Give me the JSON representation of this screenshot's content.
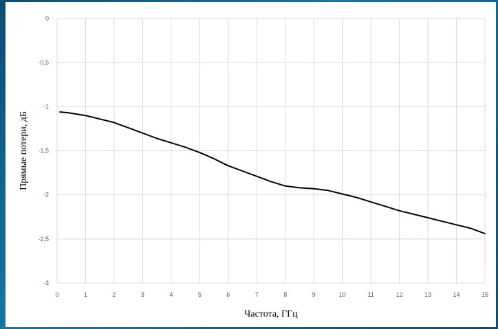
{
  "chart_data": {
    "type": "line",
    "title": "",
    "xlabel": "Частота, ГГц",
    "ylabel": "Прямые потери, дБ",
    "xlim": [
      0,
      15
    ],
    "ylim": [
      -3,
      0
    ],
    "grid": true,
    "legend": "none",
    "x_ticks": [
      "0",
      "1",
      "2",
      "3",
      "4",
      "5",
      "6",
      "7",
      "8",
      "9",
      "10",
      "11",
      "12",
      "13",
      "14",
      "15"
    ],
    "y_ticks": [
      "0",
      "-0,5",
      "-1",
      "-1,5",
      "-2",
      "-2,5",
      "-3"
    ],
    "colors": {
      "line": "#000000",
      "grid": "#d9d9d9"
    },
    "series": [
      {
        "x": [
          0.1,
          0.4,
          1.0,
          1.5,
          2.0,
          2.5,
          3.0,
          3.5,
          4.0,
          4.5,
          5.0,
          5.5,
          6.0,
          6.5,
          7.0,
          7.5,
          8.0,
          8.5,
          9.0,
          9.5,
          10.0,
          10.5,
          11.0,
          11.5,
          12.0,
          12.5,
          13.0,
          13.5,
          14.0,
          14.5,
          15.0
        ],
        "y": [
          -1.06,
          -1.07,
          -1.1,
          -1.14,
          -1.18,
          -1.24,
          -1.3,
          -1.36,
          -1.41,
          -1.46,
          -1.52,
          -1.59,
          -1.67,
          -1.73,
          -1.79,
          -1.85,
          -1.9,
          -1.92,
          -1.93,
          -1.95,
          -1.99,
          -2.03,
          -2.08,
          -2.13,
          -2.18,
          -2.22,
          -2.26,
          -2.3,
          -2.34,
          -2.38,
          -2.44
        ]
      }
    ]
  }
}
